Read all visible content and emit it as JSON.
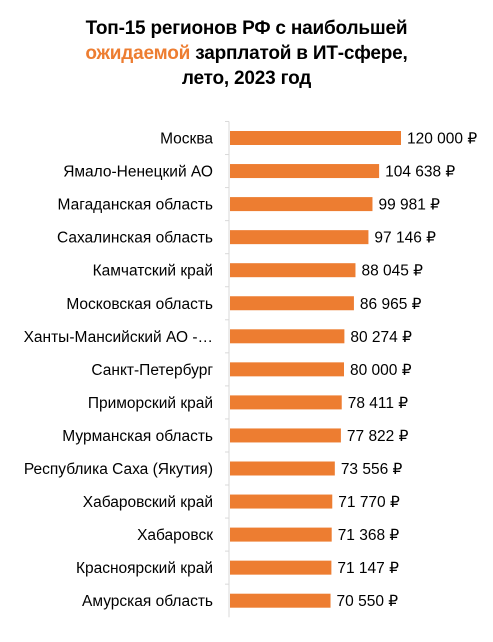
{
  "title": {
    "line1": "Топ-15 регионов РФ с наибольшей",
    "line2_highlight": "ожидаемой",
    "line2_rest": " зарплатой в ИТ-сфере,",
    "line3": "лето, 2023 год"
  },
  "colors": {
    "bar": "#ED7D31",
    "highlight": "#ED7D31",
    "axis": "#D9D9D9",
    "text": "#000000"
  },
  "chart_data": {
    "type": "bar",
    "orientation": "horizontal",
    "title": "Топ-15 регионов РФ с наибольшей ожидаемой зарплатой в ИТ-сфере, лето, 2023 год",
    "categories": [
      "Москва",
      "Ямало-Ненецкий АО",
      "Магаданская область",
      "Сахалинская область",
      "Камчатский край",
      "Московская область",
      "Ханты-Мансийский АО -…",
      "Санкт-Петербург",
      "Приморский край",
      "Мурманская область",
      "Республика Саха (Якутия)",
      "Хабаровский край",
      "Хабаровск",
      "Красноярский край",
      "Амурская область"
    ],
    "values": [
      120000,
      104638,
      99981,
      97146,
      88045,
      86965,
      80274,
      80000,
      78411,
      77822,
      73556,
      71770,
      71368,
      71147,
      70550
    ],
    "data_labels": [
      "120 000 ₽",
      "104 638 ₽",
      "99 981 ₽",
      "97 146 ₽",
      "88 045 ₽",
      "86 965 ₽",
      "80 274 ₽",
      "80 000 ₽",
      "78 411 ₽",
      "77 822 ₽",
      "73 556 ₽",
      "71 770 ₽",
      "71 368 ₽",
      "71 147 ₽",
      "70 550 ₽"
    ],
    "xlim": [
      0,
      120000
    ],
    "grid": false,
    "legend": "none"
  }
}
